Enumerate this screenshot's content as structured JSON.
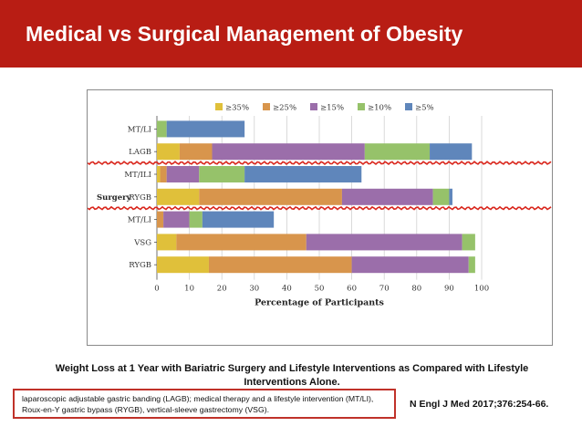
{
  "header": {
    "title": "Medical vs Surgical Management of Obesity"
  },
  "chart_data": {
    "type": "bar",
    "orientation": "horizontal",
    "stacked": true,
    "group_label": "Surgery",
    "categories": [
      "MT/LI",
      "LAGB",
      "MT/ILI",
      "RYGB",
      "MT/LI",
      "VSG",
      "RYGB"
    ],
    "group_separators_after": [
      1,
      3
    ],
    "series": [
      {
        "name": "≥35%",
        "color": "#e0c03a",
        "values": [
          0,
          7,
          1,
          13,
          0,
          6,
          16
        ]
      },
      {
        "name": "≥25%",
        "color": "#d8954c",
        "values": [
          0,
          10,
          2,
          44,
          2,
          40,
          44
        ]
      },
      {
        "name": "≥15%",
        "color": "#9b6eaa",
        "values": [
          0,
          47,
          10,
          28,
          8,
          48,
          36
        ]
      },
      {
        "name": "≥10%",
        "color": "#96c26a",
        "values": [
          3,
          20,
          14,
          5,
          4,
          4,
          2
        ]
      },
      {
        "name": "≥5%",
        "color": "#5f86bb",
        "values": [
          24,
          13,
          36,
          1,
          22,
          0,
          0
        ]
      }
    ],
    "xlabel": "Percentage of Participants",
    "xlim": [
      0,
      100
    ],
    "xticks": [
      0,
      10,
      20,
      30,
      40,
      50,
      60,
      70,
      80,
      90,
      100
    ],
    "legend_position": "top",
    "grid": "vertical"
  },
  "caption": "Weight Loss at 1 Year with Bariatric Surgery and Lifestyle Interventions as Compared with Lifestyle Interventions Alone.",
  "note": "laparoscopic adjustable gastric banding (LAGB); medical therapy and a lifestyle intervention (MT/LI), Roux-en-Y gastric bypass (RYGB), vertical-sleeve gastrectomy (VSG).",
  "reference": "N Engl J Med 2017;376:254-66."
}
